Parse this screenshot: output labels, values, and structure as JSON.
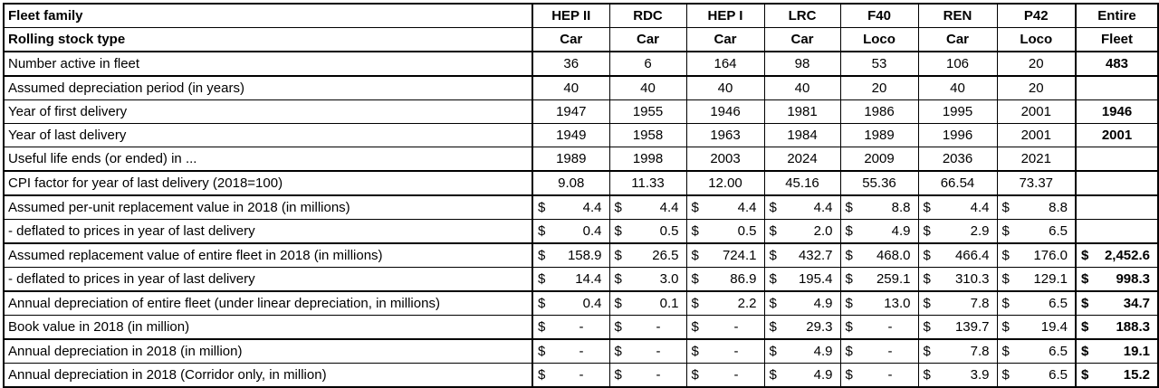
{
  "currency_symbol": "$",
  "colors": {
    "border": "#000000",
    "text": "#000000",
    "background": "#ffffff"
  },
  "table": {
    "header": {
      "row1_label": "Fleet family",
      "row2_label": "Rolling stock type",
      "columns": [
        {
          "family": "HEP II",
          "type": "Car"
        },
        {
          "family": "RDC",
          "type": "Car"
        },
        {
          "family": "HEP I",
          "type": "Car"
        },
        {
          "family": "LRC",
          "type": "Car"
        },
        {
          "family": "F40",
          "type": "Loco"
        },
        {
          "family": "REN",
          "type": "Car"
        },
        {
          "family": "P42",
          "type": "Loco"
        },
        {
          "family": "Entire",
          "type": "Fleet"
        }
      ]
    },
    "rows": [
      {
        "label": "Number active in fleet",
        "format": "number",
        "group_end": true,
        "values": [
          "36",
          "6",
          "164",
          "98",
          "53",
          "106",
          "20",
          "483"
        ]
      },
      {
        "label": "Assumed depreciation period (in years)",
        "format": "number",
        "group_end": false,
        "values": [
          "40",
          "40",
          "40",
          "40",
          "20",
          "40",
          "20",
          ""
        ]
      },
      {
        "label": "Year of first delivery",
        "format": "number",
        "group_end": false,
        "values": [
          "1947",
          "1955",
          "1946",
          "1981",
          "1986",
          "1995",
          "2001",
          "1946"
        ]
      },
      {
        "label": "Year of last delivery",
        "format": "number",
        "group_end": false,
        "values": [
          "1949",
          "1958",
          "1963",
          "1984",
          "1989",
          "1996",
          "2001",
          "2001"
        ]
      },
      {
        "label": "Useful life ends (or ended) in ...",
        "format": "number",
        "group_end": true,
        "values": [
          "1989",
          "1998",
          "2003",
          "2024",
          "2009",
          "2036",
          "2021",
          ""
        ]
      },
      {
        "label": "CPI factor for year of last delivery (2018=100)",
        "format": "number",
        "group_end": true,
        "values": [
          "9.08",
          "11.33",
          "12.00",
          "45.16",
          "55.36",
          "66.54",
          "73.37",
          ""
        ]
      },
      {
        "label": "Assumed per-unit replacement value in 2018 (in millions)",
        "format": "currency",
        "group_end": false,
        "values": [
          "4.4",
          "4.4",
          "4.4",
          "4.4",
          "8.8",
          "4.4",
          "8.8",
          ""
        ]
      },
      {
        "label": "- deflated to prices in year of last delivery",
        "format": "currency",
        "group_end": true,
        "values": [
          "0.4",
          "0.5",
          "0.5",
          "2.0",
          "4.9",
          "2.9",
          "6.5",
          ""
        ]
      },
      {
        "label": "Assumed replacement value of entire fleet in 2018 (in millions)",
        "format": "currency",
        "group_end": false,
        "values": [
          "158.9",
          "26.5",
          "724.1",
          "432.7",
          "468.0",
          "466.4",
          "176.0",
          "2,452.6"
        ]
      },
      {
        "label": "- deflated to prices in year of last delivery",
        "format": "currency",
        "group_end": true,
        "values": [
          "14.4",
          "3.0",
          "86.9",
          "195.4",
          "259.1",
          "310.3",
          "129.1",
          "998.3"
        ]
      },
      {
        "label": "Annual depreciation of entire fleet (under linear depreciation, in millions)",
        "format": "currency",
        "group_end": false,
        "values": [
          "0.4",
          "0.1",
          "2.2",
          "4.9",
          "13.0",
          "7.8",
          "6.5",
          "34.7"
        ]
      },
      {
        "label": "Book value in 2018 (in million)",
        "format": "currency",
        "group_end": true,
        "values": [
          "-",
          "-",
          "-",
          "29.3",
          "-",
          "139.7",
          "19.4",
          "188.3"
        ]
      },
      {
        "label": "Annual depreciation in 2018 (in million)",
        "format": "currency",
        "group_end": false,
        "values": [
          "-",
          "-",
          "-",
          "4.9",
          "-",
          "7.8",
          "6.5",
          "19.1"
        ]
      },
      {
        "label": "Annual depreciation in 2018 (Corridor only, in million)",
        "format": "currency",
        "group_end": false,
        "values": [
          "-",
          "-",
          "-",
          "4.9",
          "-",
          "3.9",
          "6.5",
          "15.2"
        ]
      }
    ]
  }
}
